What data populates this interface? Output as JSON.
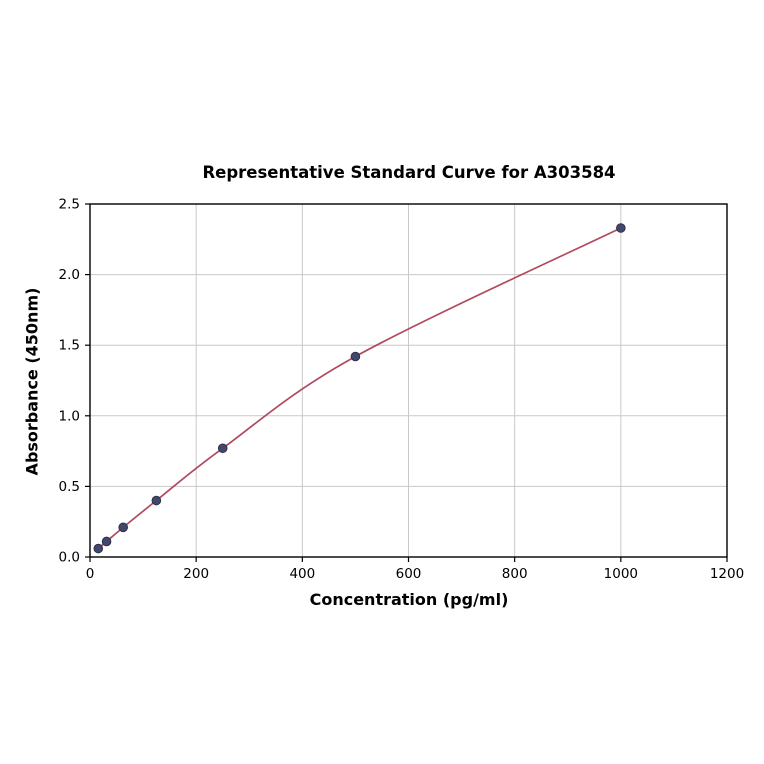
{
  "chart_data": {
    "type": "line",
    "title": "Representative Standard Curve for A303584",
    "xlabel": "Concentration (pg/ml)",
    "ylabel": "Absorbance (450nm)",
    "xlim": [
      0,
      1200
    ],
    "ylim": [
      0,
      2.5
    ],
    "xticks": [
      0,
      200,
      400,
      600,
      800,
      1000,
      1200
    ],
    "yticks": [
      0.0,
      0.5,
      1.0,
      1.5,
      2.0,
      2.5
    ],
    "grid": true,
    "legend": "none",
    "series": [
      {
        "name": "standard-curve",
        "x": [
          15.6,
          31.2,
          62.5,
          125,
          250,
          500,
          1000
        ],
        "y": [
          0.06,
          0.11,
          0.21,
          0.4,
          0.77,
          1.42,
          2.33
        ]
      }
    ],
    "colors": {
      "curve": "#b14a5f",
      "marker_fill": "#41486b",
      "marker_edge": "#2c3149",
      "grid": "#c9c9c9",
      "axis": "#000000",
      "background": "#ffffff"
    }
  }
}
